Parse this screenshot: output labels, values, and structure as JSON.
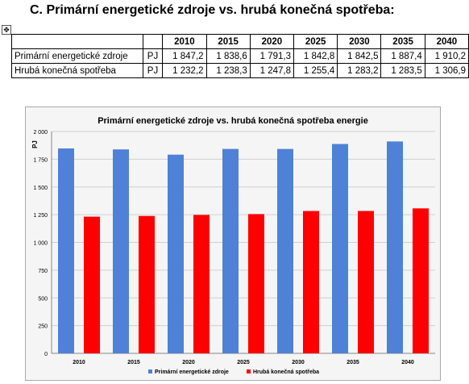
{
  "heading": "C.  Primární energetické zdroje vs. hrubá konečná spotřeba:",
  "table": {
    "years": [
      "2010",
      "2015",
      "2020",
      "2025",
      "2030",
      "2035",
      "2040"
    ],
    "rows": [
      {
        "label": "Primární energetické zdroje",
        "unit": "PJ",
        "values": [
          "1 847,2",
          "1 838,6",
          "1 791,3",
          "1 842,8",
          "1 842,5",
          "1 887,4",
          "1 910,2"
        ]
      },
      {
        "label": "Hrubá konečná spotřeba",
        "unit": "PJ",
        "values": [
          "1 232,2",
          "1 238,3",
          "1 247,8",
          "1 255,4",
          "1 283,2",
          "1 283,5",
          "1 306,9"
        ]
      }
    ]
  },
  "chart_data": {
    "type": "bar",
    "title": "Primární energetické zdroje vs. hrubá konečná spotřeba energie",
    "ylabel": "PJ",
    "xlabel": "",
    "categories": [
      "2010",
      "2015",
      "2020",
      "2025",
      "2030",
      "2035",
      "2040"
    ],
    "ylim": [
      0,
      2000
    ],
    "yticks": [
      0,
      250,
      500,
      750,
      1000,
      1250,
      1500,
      1750,
      2000
    ],
    "ytick_labels": [
      "0",
      "250",
      "500",
      "750",
      "1 000",
      "1 250",
      "1 500",
      "1 750",
      "2 000"
    ],
    "grid": true,
    "legend": "bottom",
    "series": [
      {
        "name": "Primární energetické zdroje",
        "color": "#4f81d6",
        "values": [
          1847.2,
          1838.6,
          1791.3,
          1842.8,
          1842.5,
          1887.4,
          1910.2
        ]
      },
      {
        "name": "Hrubá konečná spotřeba",
        "color": "#ff0000",
        "values": [
          1232.2,
          1238.3,
          1247.8,
          1255.4,
          1283.2,
          1283.5,
          1306.9
        ]
      }
    ]
  }
}
